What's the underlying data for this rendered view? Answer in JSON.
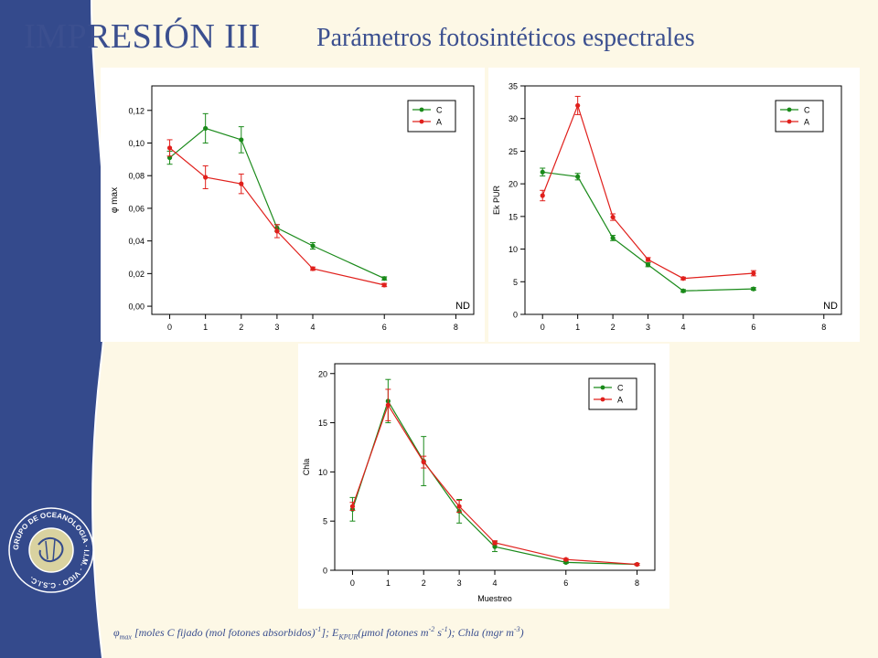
{
  "header": {
    "title": "IMPRESIÓN III",
    "subtitle": "Parámetros fotosintéticos espectrales"
  },
  "footnote": {
    "phi_sym": "φ",
    "phi_sub": "max",
    "phi_desc": " [moles C fijado (mol fotones absorbidos)",
    "phi_sup": "-1",
    "phi_end": "];",
    "ek_sym": " E",
    "ek_sub": "KPUR",
    "ek_desc": "(μmol fotones m",
    "ek_sup1": "-2",
    "ek_mid": " s",
    "ek_sup2": "-1",
    "ek_end": "); ",
    "chla_word": "Chla",
    "chla_desc": " (mgr m",
    "chla_sup": "-3",
    "chla_end": ")"
  },
  "logo": {
    "text": "GRUPO DE OCEANOLOGIA · I.I.M. · VIGO · C.S.I.C."
  },
  "colors": {
    "sidebar": "#344a8c",
    "C": "#1a8a1a",
    "A": "#e0201c",
    "title": "#3b4f8f",
    "background": "#fdf8e6"
  },
  "chart_data": [
    {
      "type": "line",
      "ylabel": "φ max",
      "xlabel": "",
      "xlim": [
        -0.5,
        8.5
      ],
      "ylim": [
        -0.005,
        0.135
      ],
      "xticks": [
        0,
        1,
        2,
        3,
        4,
        6,
        8
      ],
      "yticks": [
        0,
        0.02,
        0.04,
        0.06,
        0.08,
        0.1,
        0.12
      ],
      "ytick_labels": [
        "0,00",
        "0,02",
        "0,04",
        "0,06",
        "0,08",
        "0,10",
        "0,12"
      ],
      "annotation": "ND",
      "legend": "top-right",
      "series": [
        {
          "name": "C",
          "x": [
            0,
            1,
            2,
            3,
            4,
            6
          ],
          "y": [
            0.091,
            0.109,
            0.102,
            0.048,
            0.037,
            0.017
          ],
          "err": [
            0.004,
            0.009,
            0.008,
            0.002,
            0.002,
            0.001
          ]
        },
        {
          "name": "A",
          "x": [
            0,
            1,
            2,
            3,
            4,
            6
          ],
          "y": [
            0.097,
            0.079,
            0.075,
            0.046,
            0.023,
            0.013
          ],
          "err": [
            0.005,
            0.007,
            0.006,
            0.004,
            0.001,
            0.001
          ]
        }
      ]
    },
    {
      "type": "line",
      "ylabel": "Ek PUR",
      "xlabel": "",
      "xlim": [
        -0.5,
        8.5
      ],
      "ylim": [
        0,
        35
      ],
      "xticks": [
        0,
        1,
        2,
        3,
        4,
        6,
        8
      ],
      "yticks": [
        0,
        5,
        10,
        15,
        20,
        25,
        30,
        35
      ],
      "ytick_labels": [
        "0",
        "5",
        "10",
        "15",
        "20",
        "25",
        "30",
        "35"
      ],
      "annotation": "ND",
      "legend": "top-right",
      "series": [
        {
          "name": "C",
          "x": [
            0,
            1,
            2,
            3,
            4,
            6
          ],
          "y": [
            21.8,
            21.1,
            11.7,
            7.6,
            3.6,
            3.9
          ],
          "err": [
            0.6,
            0.5,
            0.4,
            0.3,
            0.2,
            0.2
          ]
        },
        {
          "name": "A",
          "x": [
            0,
            1,
            2,
            3,
            4,
            6
          ],
          "y": [
            18.2,
            32.0,
            14.9,
            8.4,
            5.5,
            6.3
          ],
          "err": [
            0.8,
            1.4,
            0.5,
            0.3,
            0.2,
            0.4
          ]
        }
      ]
    },
    {
      "type": "line",
      "ylabel": "Chla",
      "xlabel": "Muestreo",
      "xlim": [
        -0.5,
        8.5
      ],
      "ylim": [
        0,
        21
      ],
      "xticks": [
        0,
        1,
        2,
        3,
        4,
        6,
        8
      ],
      "yticks": [
        0,
        5,
        10,
        15,
        20
      ],
      "ytick_labels": [
        "0",
        "5",
        "10",
        "15",
        "20"
      ],
      "annotation": "",
      "legend": "top-right",
      "series": [
        {
          "name": "C",
          "x": [
            0,
            1,
            2,
            3,
            4,
            6,
            8
          ],
          "y": [
            6.2,
            17.2,
            11.1,
            6.0,
            2.4,
            0.8,
            0.6
          ],
          "err": [
            1.2,
            2.2,
            2.5,
            1.2,
            0.5,
            0.1,
            0.1
          ]
        },
        {
          "name": "A",
          "x": [
            0,
            1,
            2,
            3,
            4,
            6,
            8
          ],
          "y": [
            6.5,
            16.8,
            11.0,
            6.5,
            2.8,
            1.1,
            0.6
          ],
          "err": [
            0.4,
            1.6,
            0.6,
            0.6,
            0.2,
            0.1,
            0.1
          ]
        }
      ]
    }
  ]
}
